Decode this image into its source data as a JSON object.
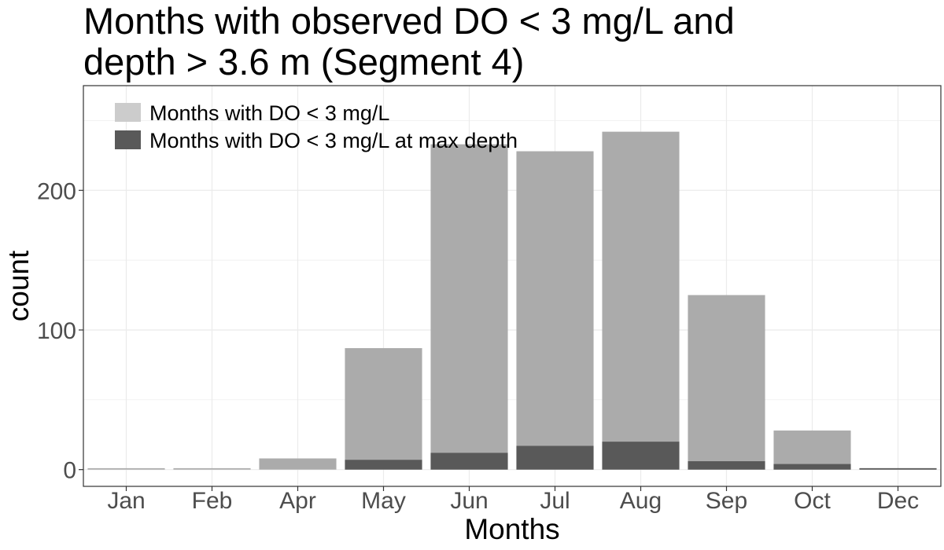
{
  "title_lines": [
    "Months with observed DO < 3 mg/L and",
    "depth > 3.6 m (Segment 4)"
  ],
  "colors": {
    "total_bar": "#ababab",
    "maxdepth_bar": "#595959",
    "legend_total": "#cccccc",
    "legend_maxdepth": "#595959",
    "grid": "#ebebeb",
    "panel_border": "#333333"
  },
  "chart_data": {
    "type": "bar",
    "title": "Months with observed DO < 3 mg/L and depth > 3.6 m (Segment 4)",
    "xlabel": "Months",
    "ylabel": "count",
    "categories": [
      "Jan",
      "Feb",
      "Apr",
      "May",
      "Jun",
      "Jul",
      "Aug",
      "Sep",
      "Oct",
      "Dec"
    ],
    "ylim": [
      -12,
      275
    ],
    "yticks": [
      0,
      100,
      200
    ],
    "yticks_labels": [
      "0",
      "100",
      "200"
    ],
    "grid": true,
    "legend_position": "top-left",
    "series": [
      {
        "name": "Months with DO < 3 mg/L",
        "values": [
          1,
          1,
          8,
          87,
          233,
          228,
          242,
          125,
          28,
          1
        ]
      },
      {
        "name": "Months with DO < 3 mg/L at max depth",
        "values": [
          0,
          0,
          0,
          7,
          12,
          17,
          20,
          6,
          4,
          1
        ]
      }
    ]
  }
}
